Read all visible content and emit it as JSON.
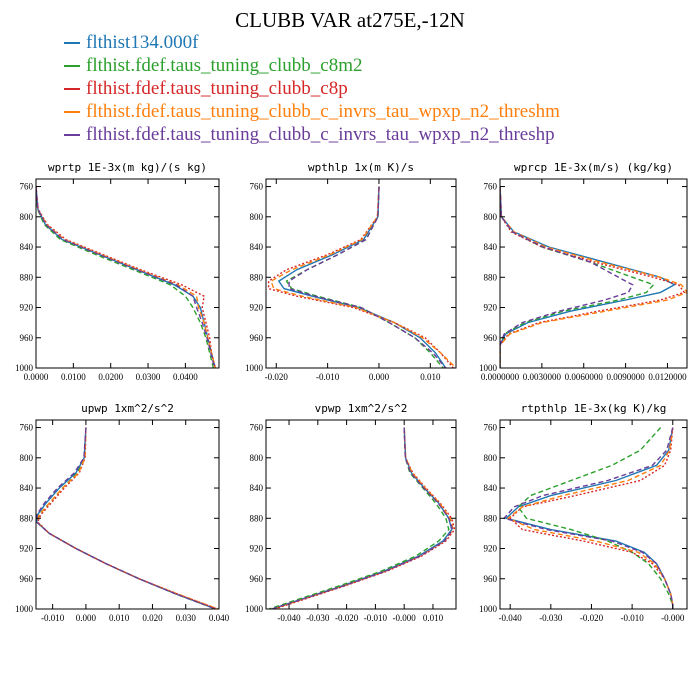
{
  "figure": {
    "title": "CLUBB VAR at275E,-12N"
  },
  "legend": [
    {
      "label": "flthist134.000f",
      "color": "#1f77b4"
    },
    {
      "label": "flthist.fdef.taus_tuning_clubb_c8m2",
      "color": "#2ca02c"
    },
    {
      "label": "flthist.fdef.taus_tuning_clubb_c8p",
      "color": "#d62728"
    },
    {
      "label": "flthist.fdef.taus_tuning_clubb_c_invrs_tau_wpxp_n2_threshm",
      "color": "#ff7f0e"
    },
    {
      "label": "flthist.fdef.taus_tuning_clubb_c_invrs_tau_wpxp_n2_threshp",
      "color": "#6a3d9a"
    }
  ],
  "chart_data": [
    {
      "type": "line",
      "title": "wprtp  1E-3x(m kg)/(s kg)",
      "xlim": [
        0,
        0.049
      ],
      "ylim": [
        1000,
        750
      ],
      "xticks": [
        0,
        0.01,
        0.02,
        0.03,
        0.04
      ],
      "xtick_labels": [
        "0.0000",
        "0.0100",
        "0.0200",
        "0.0300",
        "0.0400"
      ],
      "yticks": [
        760,
        800,
        840,
        880,
        920,
        960,
        1000
      ],
      "y": [
        760,
        790,
        810,
        830,
        850,
        870,
        890,
        905,
        920,
        940,
        960,
        980,
        1000
      ],
      "series": [
        {
          "color": "#1f77b4",
          "dash": "solid",
          "values": [
            0.0,
            0.0005,
            0.0025,
            0.007,
            0.017,
            0.027,
            0.037,
            0.042,
            0.044,
            0.045,
            0.046,
            0.047,
            0.048
          ]
        },
        {
          "color": "#2ca02c",
          "dash": "dashed",
          "values": [
            0.0,
            0.0004,
            0.0022,
            0.0065,
            0.016,
            0.026,
            0.036,
            0.04,
            0.042,
            0.044,
            0.0455,
            0.0465,
            0.0475
          ]
        },
        {
          "color": "#d62728",
          "dash": "dotted",
          "values": [
            0.0,
            0.0006,
            0.003,
            0.008,
            0.018,
            0.028,
            0.039,
            0.045,
            0.0445,
            0.0455,
            0.0465,
            0.047,
            0.048
          ]
        },
        {
          "color": "#ff7f0e",
          "dash": "dashed",
          "values": [
            0.0,
            0.0005,
            0.0028,
            0.0075,
            0.0175,
            0.0275,
            0.038,
            0.043,
            0.0435,
            0.045,
            0.046,
            0.047,
            0.048
          ]
        },
        {
          "color": "#6a3d9a",
          "dash": "dashed",
          "values": [
            0.0,
            0.0005,
            0.0026,
            0.0072,
            0.017,
            0.027,
            0.0375,
            0.042,
            0.043,
            0.0445,
            0.0458,
            0.0468,
            0.0478
          ]
        }
      ]
    },
    {
      "type": "line",
      "title": "wpthlp  1x(m K)/s",
      "xlim": [
        -0.022,
        0.015
      ],
      "ylim": [
        1000,
        750
      ],
      "xticks": [
        -0.02,
        -0.01,
        0,
        0.01
      ],
      "xtick_labels": [
        "-0.020",
        "-0.010",
        "0.000",
        "0.010"
      ],
      "yticks": [
        760,
        800,
        840,
        880,
        920,
        960,
        1000
      ],
      "y": [
        760,
        800,
        830,
        850,
        870,
        885,
        895,
        905,
        920,
        940,
        960,
        980,
        1000
      ],
      "series": [
        {
          "color": "#1f77b4",
          "dash": "solid",
          "values": [
            0.0,
            -0.0002,
            -0.003,
            -0.009,
            -0.016,
            -0.0195,
            -0.0185,
            -0.013,
            -0.004,
            0.003,
            0.008,
            0.011,
            0.013
          ]
        },
        {
          "color": "#2ca02c",
          "dash": "dashed",
          "values": [
            0.0,
            -0.0002,
            -0.0025,
            -0.008,
            -0.014,
            -0.018,
            -0.017,
            -0.012,
            -0.0035,
            0.002,
            0.007,
            0.01,
            0.0125
          ]
        },
        {
          "color": "#d62728",
          "dash": "dotted",
          "values": [
            0.0,
            -0.0003,
            -0.0035,
            -0.01,
            -0.018,
            -0.0215,
            -0.0215,
            -0.016,
            -0.005,
            0.003,
            0.009,
            0.012,
            0.0145
          ]
        },
        {
          "color": "#ff7f0e",
          "dash": "dashed",
          "values": [
            0.0,
            -0.0003,
            -0.0033,
            -0.0095,
            -0.017,
            -0.021,
            -0.0205,
            -0.015,
            -0.0045,
            0.003,
            0.0085,
            0.012,
            0.015
          ]
        },
        {
          "color": "#6a3d9a",
          "dash": "dashed",
          "values": [
            0.0,
            -0.0002,
            -0.0025,
            -0.008,
            -0.014,
            -0.0175,
            -0.0175,
            -0.0125,
            -0.0035,
            0.002,
            0.007,
            0.0105,
            0.013
          ]
        }
      ]
    },
    {
      "type": "line",
      "title": "wprcp  1E-3x(m/s) (kg/kg)",
      "xlim": [
        0,
        0.0134
      ],
      "ylim": [
        1000,
        750
      ],
      "xticks": [
        0,
        0.003,
        0.006,
        0.009,
        0.012
      ],
      "xtick_labels": [
        "0.0000000",
        "0.0030000",
        "0.0060000",
        "0.0090000",
        "0.0120000"
      ],
      "yticks": [
        760,
        800,
        840,
        880,
        920,
        960,
        1000
      ],
      "y": [
        760,
        800,
        820,
        840,
        860,
        880,
        890,
        900,
        910,
        925,
        940,
        955,
        970,
        1000
      ],
      "series": [
        {
          "color": "#1f77b4",
          "dash": "solid",
          "values": [
            0.0,
            0.0001,
            0.001,
            0.0035,
            0.0075,
            0.0115,
            0.0125,
            0.0115,
            0.009,
            0.005,
            0.002,
            0.0004,
            0.0,
            0.0
          ]
        },
        {
          "color": "#2ca02c",
          "dash": "dashed",
          "values": [
            0.0,
            0.0001,
            0.0009,
            0.003,
            0.0065,
            0.0095,
            0.011,
            0.0105,
            0.0085,
            0.0045,
            0.0018,
            0.0003,
            0.0,
            0.0
          ]
        },
        {
          "color": "#d62728",
          "dash": "dotted",
          "values": [
            0.0,
            0.0001,
            0.0008,
            0.003,
            0.0068,
            0.011,
            0.0128,
            0.0132,
            0.0115,
            0.007,
            0.0028,
            0.0006,
            0.0,
            0.0
          ]
        },
        {
          "color": "#ff7f0e",
          "dash": "dashed",
          "values": [
            0.0,
            0.0001,
            0.001,
            0.0033,
            0.0072,
            0.0115,
            0.013,
            0.0134,
            0.012,
            0.0075,
            0.003,
            0.0007,
            0.0,
            0.0
          ]
        },
        {
          "color": "#6a3d9a",
          "dash": "dashed",
          "values": [
            0.0,
            0.0001,
            0.0009,
            0.0031,
            0.0065,
            0.0085,
            0.0095,
            0.0092,
            0.0075,
            0.0042,
            0.0016,
            0.0003,
            0.0,
            0.0
          ]
        }
      ]
    },
    {
      "type": "line",
      "title": "upwp  1xm^2/s^2",
      "xlim": [
        -0.015,
        0.04
      ],
      "ylim": [
        1000,
        750
      ],
      "xticks": [
        -0.01,
        0,
        0.01,
        0.02,
        0.03,
        0.04
      ],
      "xtick_labels": [
        "-0.010",
        "0.000",
        "0.010",
        "0.020",
        "0.030",
        "0.040"
      ],
      "yticks": [
        760,
        800,
        840,
        880,
        920,
        960,
        1000
      ],
      "y": [
        760,
        800,
        820,
        840,
        860,
        875,
        885,
        900,
        920,
        940,
        960,
        980,
        1000
      ],
      "series": [
        {
          "color": "#1f77b4",
          "dash": "solid",
          "values": [
            0.0,
            -0.0005,
            -0.003,
            -0.008,
            -0.012,
            -0.0145,
            -0.0148,
            -0.011,
            -0.003,
            0.006,
            0.016,
            0.027,
            0.039
          ]
        },
        {
          "color": "#2ca02c",
          "dash": "dashed",
          "values": [
            0.0,
            -0.0003,
            -0.0025,
            -0.007,
            -0.011,
            -0.014,
            -0.0146,
            -0.011,
            -0.003,
            0.006,
            0.016,
            0.027,
            0.039
          ]
        },
        {
          "color": "#d62728",
          "dash": "dotted",
          "values": [
            0.0,
            -0.0002,
            -0.002,
            -0.0065,
            -0.0105,
            -0.0135,
            -0.0145,
            -0.011,
            -0.003,
            0.006,
            0.016,
            0.0275,
            0.0395
          ]
        },
        {
          "color": "#ff7f0e",
          "dash": "dashed",
          "values": [
            0.0,
            -0.0003,
            -0.0022,
            -0.007,
            -0.011,
            -0.014,
            -0.0147,
            -0.011,
            -0.003,
            0.006,
            0.016,
            0.0275,
            0.0398
          ]
        },
        {
          "color": "#6a3d9a",
          "dash": "dashed",
          "values": [
            0.0,
            -0.0006,
            -0.0035,
            -0.0085,
            -0.0125,
            -0.0147,
            -0.0148,
            -0.011,
            -0.003,
            0.006,
            0.016,
            0.027,
            0.039
          ]
        }
      ]
    },
    {
      "type": "line",
      "title": "vpwp  1xm^2/s^2",
      "xlim": [
        -0.048,
        0.018
      ],
      "ylim": [
        1000,
        750
      ],
      "xticks": [
        -0.04,
        -0.03,
        -0.02,
        -0.01,
        0,
        0.01
      ],
      "xtick_labels": [
        "-0.040",
        "-0.030",
        "-0.020",
        "-0.010",
        "-0.000",
        "0.010"
      ],
      "yticks": [
        760,
        800,
        840,
        880,
        920,
        960,
        1000
      ],
      "y": [
        760,
        800,
        820,
        840,
        860,
        880,
        895,
        910,
        930,
        950,
        970,
        990,
        1000
      ],
      "series": [
        {
          "color": "#1f77b4",
          "dash": "solid",
          "values": [
            0.0,
            0.0005,
            0.0025,
            0.007,
            0.012,
            0.0155,
            0.0165,
            0.0135,
            0.005,
            -0.007,
            -0.022,
            -0.038,
            -0.046
          ]
        },
        {
          "color": "#2ca02c",
          "dash": "dashed",
          "values": [
            0.0,
            0.0004,
            0.002,
            0.0065,
            0.011,
            0.0145,
            0.0155,
            0.012,
            0.004,
            -0.008,
            -0.023,
            -0.039,
            -0.047
          ]
        },
        {
          "color": "#d62728",
          "dash": "dotted",
          "values": [
            0.0,
            0.0005,
            0.003,
            0.0075,
            0.0125,
            0.0165,
            0.0175,
            0.0145,
            0.006,
            -0.006,
            -0.021,
            -0.037,
            -0.045
          ]
        },
        {
          "color": "#ff7f0e",
          "dash": "dashed",
          "values": [
            0.0,
            0.0005,
            0.0028,
            0.0073,
            0.0123,
            0.016,
            0.017,
            0.014,
            0.0055,
            -0.0065,
            -0.0215,
            -0.0375,
            -0.0455
          ]
        },
        {
          "color": "#6a3d9a",
          "dash": "dashed",
          "values": [
            0.0,
            0.0004,
            0.0023,
            0.0068,
            0.0118,
            0.0155,
            0.0168,
            0.014,
            0.0055,
            -0.0065,
            -0.0215,
            -0.0378,
            -0.046
          ]
        }
      ]
    },
    {
      "type": "line",
      "title": "rtpthlp  1E-3x(kg K)/kg",
      "xlim": [
        -0.0425,
        0.0035
      ],
      "ylim": [
        1000,
        750
      ],
      "xticks": [
        -0.04,
        -0.03,
        -0.02,
        -0.01,
        0
      ],
      "xtick_labels": [
        "-0.040",
        "-0.030",
        "-0.020",
        "-0.010",
        "-0.000"
      ],
      "yticks": [
        760,
        800,
        840,
        880,
        920,
        960,
        1000
      ],
      "y": [
        760,
        790,
        810,
        830,
        850,
        865,
        880,
        895,
        910,
        925,
        940,
        960,
        980,
        995,
        1000
      ],
      "series": [
        {
          "color": "#1f77b4",
          "dash": "solid",
          "values": [
            0.0,
            -0.001,
            -0.004,
            -0.014,
            -0.03,
            -0.038,
            -0.041,
            -0.03,
            -0.014,
            -0.007,
            -0.004,
            -0.002,
            -0.0005,
            0.0,
            0.0
          ]
        },
        {
          "color": "#2ca02c",
          "dash": "dashed",
          "values": [
            -0.003,
            -0.008,
            -0.015,
            -0.025,
            -0.035,
            -0.038,
            -0.036,
            -0.025,
            -0.016,
            -0.01,
            -0.006,
            -0.003,
            -0.001,
            0.0,
            0.0
          ]
        },
        {
          "color": "#d62728",
          "dash": "dotted",
          "values": [
            0.0,
            -0.0005,
            -0.002,
            -0.008,
            -0.024,
            -0.037,
            -0.04,
            -0.037,
            -0.022,
            -0.01,
            -0.005,
            -0.002,
            -0.0005,
            0.0,
            0.0
          ]
        },
        {
          "color": "#ff7f0e",
          "dash": "dashed",
          "values": [
            0.0,
            -0.0008,
            -0.003,
            -0.011,
            -0.027,
            -0.037,
            -0.0405,
            -0.034,
            -0.019,
            -0.0085,
            -0.0045,
            -0.002,
            -0.0005,
            0.0,
            0.0
          ]
        },
        {
          "color": "#6a3d9a",
          "dash": "dashed",
          "values": [
            0.0,
            -0.0015,
            -0.005,
            -0.016,
            -0.032,
            -0.039,
            -0.0415,
            -0.031,
            -0.015,
            -0.0075,
            -0.004,
            -0.002,
            -0.0005,
            0.0,
            0.0
          ]
        }
      ]
    }
  ]
}
